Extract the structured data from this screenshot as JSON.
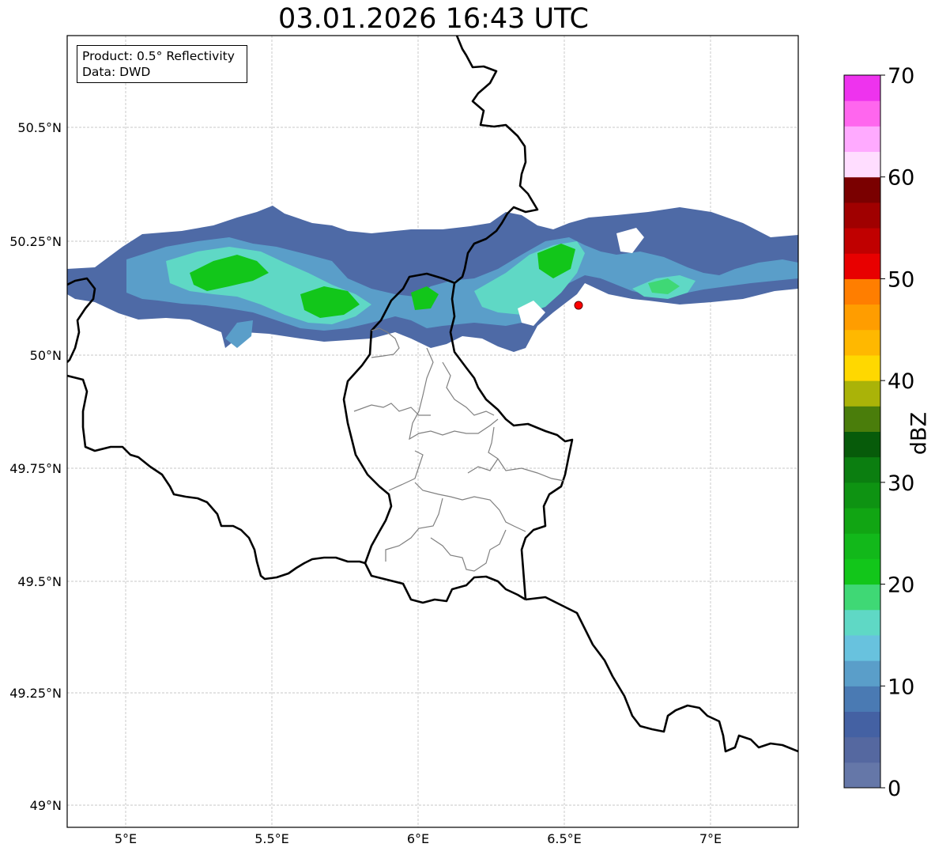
{
  "title": "03.01.2026 16:43 UTC",
  "info": {
    "product": "Product: 0.5° Reflectivity",
    "data": "Data: DWD"
  },
  "axes": {
    "x_ticks": [
      "5°E",
      "5.5°E",
      "6°E",
      "6.5°E",
      "7°E"
    ],
    "y_ticks": [
      "50.5°N",
      "50.25°N",
      "50°N",
      "49.75°N",
      "49.5°N",
      "49.25°N",
      "49°N"
    ]
  },
  "colorbar": {
    "label": "dBZ",
    "tick_labels": [
      "0",
      "10",
      "20",
      "30",
      "40",
      "50",
      "60",
      "70"
    ],
    "colors": [
      "#6577a8",
      "#5568a0",
      "#4461a3",
      "#4a7ab3",
      "#5a9ec9",
      "#68c2de",
      "#5fd8c5",
      "#3fd875",
      "#12c61a",
      "#12b81a",
      "#11a513",
      "#0e9312",
      "#0b7e10",
      "#075b0a",
      "#4a7d0b",
      "#aab308",
      "#ffd800",
      "#ffb800",
      "#ff9d00",
      "#ff7e00",
      "#e80000",
      "#c00000",
      "#a00000",
      "#7a0000",
      "#ffddff",
      "#ffaaff",
      "#ff66ee",
      "#ee33ee"
    ]
  },
  "marker": {
    "lon": 6.55,
    "lat": 50.11,
    "color": "#ff0000"
  },
  "chart_data": {
    "type": "heatmap",
    "title": "03.01.2026 16:43 UTC",
    "xlabel": "",
    "ylabel": "",
    "xlim": [
      4.8,
      7.3
    ],
    "ylim": [
      48.95,
      50.7
    ],
    "colorbar_range": [
      0,
      70
    ],
    "colorbar_step": 2.5,
    "grid": true
  }
}
